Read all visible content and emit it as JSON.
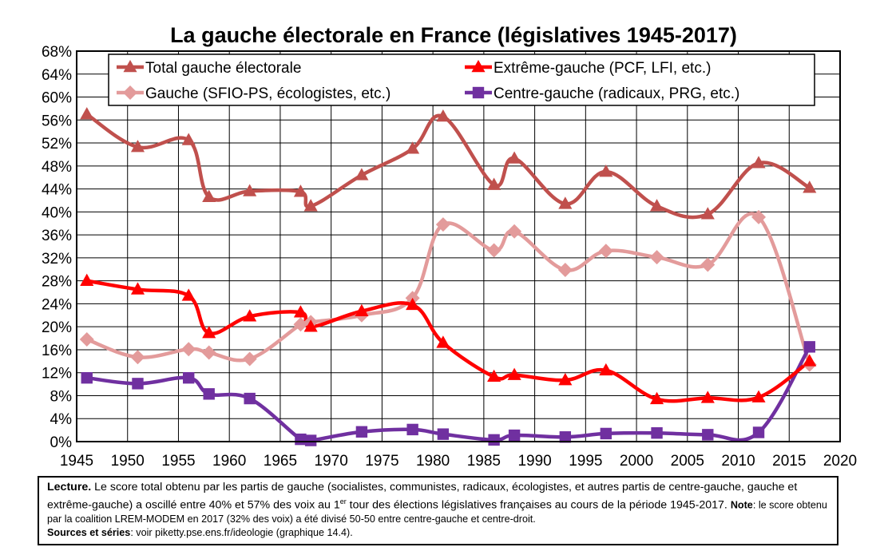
{
  "chart_data": {
    "type": "line",
    "title": "La gauche électorale en France (législatives 1945-2017)",
    "xlim": [
      1945,
      2020
    ],
    "ylim": [
      0,
      68
    ],
    "x_ticks": [
      "1945",
      "1950",
      "1955",
      "1960",
      "1965",
      "1970",
      "1975",
      "1980",
      "1985",
      "1990",
      "1995",
      "2000",
      "2005",
      "2010",
      "2015",
      "2020"
    ],
    "y_ticks": [
      "0%",
      "4%",
      "8%",
      "12%",
      "16%",
      "20%",
      "24%",
      "28%",
      "32%",
      "36%",
      "40%",
      "44%",
      "48%",
      "52%",
      "56%",
      "60%",
      "64%",
      "68%"
    ],
    "grid": true,
    "legend": "top",
    "series": [
      {
        "name": "Total gauche électorale",
        "color": "#c0504d",
        "marker": "triangle",
        "points": [
          [
            1946,
            57
          ],
          [
            1951,
            51.3
          ],
          [
            1956,
            52.5
          ],
          [
            1958,
            42.6
          ],
          [
            1962,
            43.6
          ],
          [
            1967,
            43.5
          ],
          [
            1968,
            41
          ],
          [
            1973,
            46.4
          ],
          [
            1978,
            51
          ],
          [
            1981,
            56.6
          ],
          [
            1986,
            44.7
          ],
          [
            1988,
            49.3
          ],
          [
            1993,
            41.4
          ],
          [
            1997,
            47
          ],
          [
            2002,
            41
          ],
          [
            2007,
            39.6
          ],
          [
            2012,
            48.5
          ],
          [
            2017,
            44.2
          ]
        ]
      },
      {
        "name": "Extrême-gauche (PCF, LFI, etc.)",
        "color": "#ff0000",
        "marker": "triangle",
        "points": [
          [
            1946,
            28
          ],
          [
            1951,
            26.5
          ],
          [
            1956,
            25.4
          ],
          [
            1958,
            18.9
          ],
          [
            1962,
            21.8
          ],
          [
            1967,
            22.5
          ],
          [
            1968,
            20
          ],
          [
            1973,
            22.7
          ],
          [
            1978,
            23.8
          ],
          [
            1981,
            17.2
          ],
          [
            1986,
            11.3
          ],
          [
            1988,
            11.6
          ],
          [
            1993,
            10.7
          ],
          [
            1997,
            12.4
          ],
          [
            2002,
            7.4
          ],
          [
            2007,
            7.6
          ],
          [
            2012,
            7.7
          ],
          [
            2017,
            14
          ]
        ]
      },
      {
        "name": "Gauche (SFIO-PS, écologistes, etc.)",
        "color": "#e39b9b",
        "marker": "diamond",
        "points": [
          [
            1946,
            17.8
          ],
          [
            1951,
            14.7
          ],
          [
            1956,
            16.1
          ],
          [
            1958,
            15.5
          ],
          [
            1962,
            14.4
          ],
          [
            1967,
            20.4
          ],
          [
            1968,
            20.8
          ],
          [
            1973,
            22
          ],
          [
            1978,
            25
          ],
          [
            1981,
            37.8
          ],
          [
            1986,
            33.3
          ],
          [
            1988,
            36.6
          ],
          [
            1993,
            29.9
          ],
          [
            1997,
            33.2
          ],
          [
            2002,
            32.1
          ],
          [
            2007,
            30.8
          ],
          [
            2012,
            39.1
          ],
          [
            2017,
            13.4
          ]
        ]
      },
      {
        "name": "Centre-gauche (radicaux, PRG, etc.)",
        "color": "#7030a0",
        "marker": "square",
        "points": [
          [
            1946,
            11.1
          ],
          [
            1951,
            10.1
          ],
          [
            1956,
            11.1
          ],
          [
            1958,
            8.3
          ],
          [
            1962,
            7.5
          ],
          [
            1967,
            0.4
          ],
          [
            1968,
            0.2
          ],
          [
            1973,
            1.7
          ],
          [
            1978,
            2.1
          ],
          [
            1981,
            1.3
          ],
          [
            1986,
            0.3
          ],
          [
            1988,
            1.1
          ],
          [
            1993,
            0.8
          ],
          [
            1997,
            1.4
          ],
          [
            2002,
            1.5
          ],
          [
            2007,
            1.2
          ],
          [
            2012,
            1.6
          ],
          [
            2017,
            16.5
          ]
        ]
      }
    ]
  },
  "note": {
    "lecture_label": "Lecture.",
    "lecture_text_1": " Le score total obtenu par les partis de gauche (socialistes, communistes, radicaux, écologistes, et autres partis de centre-gauche, gauche et extrême-gauche) a oscillé entre 40% et 57% des voix au 1",
    "lecture_sup": "er",
    "lecture_text_2": " tour des élections législatives françaises au cours de la période 1945-2017. ",
    "note_label": "Note",
    "note_text": ": le score obtenu par la coalition LREM-MODEM en 2017 (32% des voix) a été divisé 50-50 entre centre-gauche et centre-droit.",
    "sources_label": "Sources et séries",
    "sources_text": ": voir piketty.pse.ens.fr/ideologie (graphique 14.4)."
  }
}
